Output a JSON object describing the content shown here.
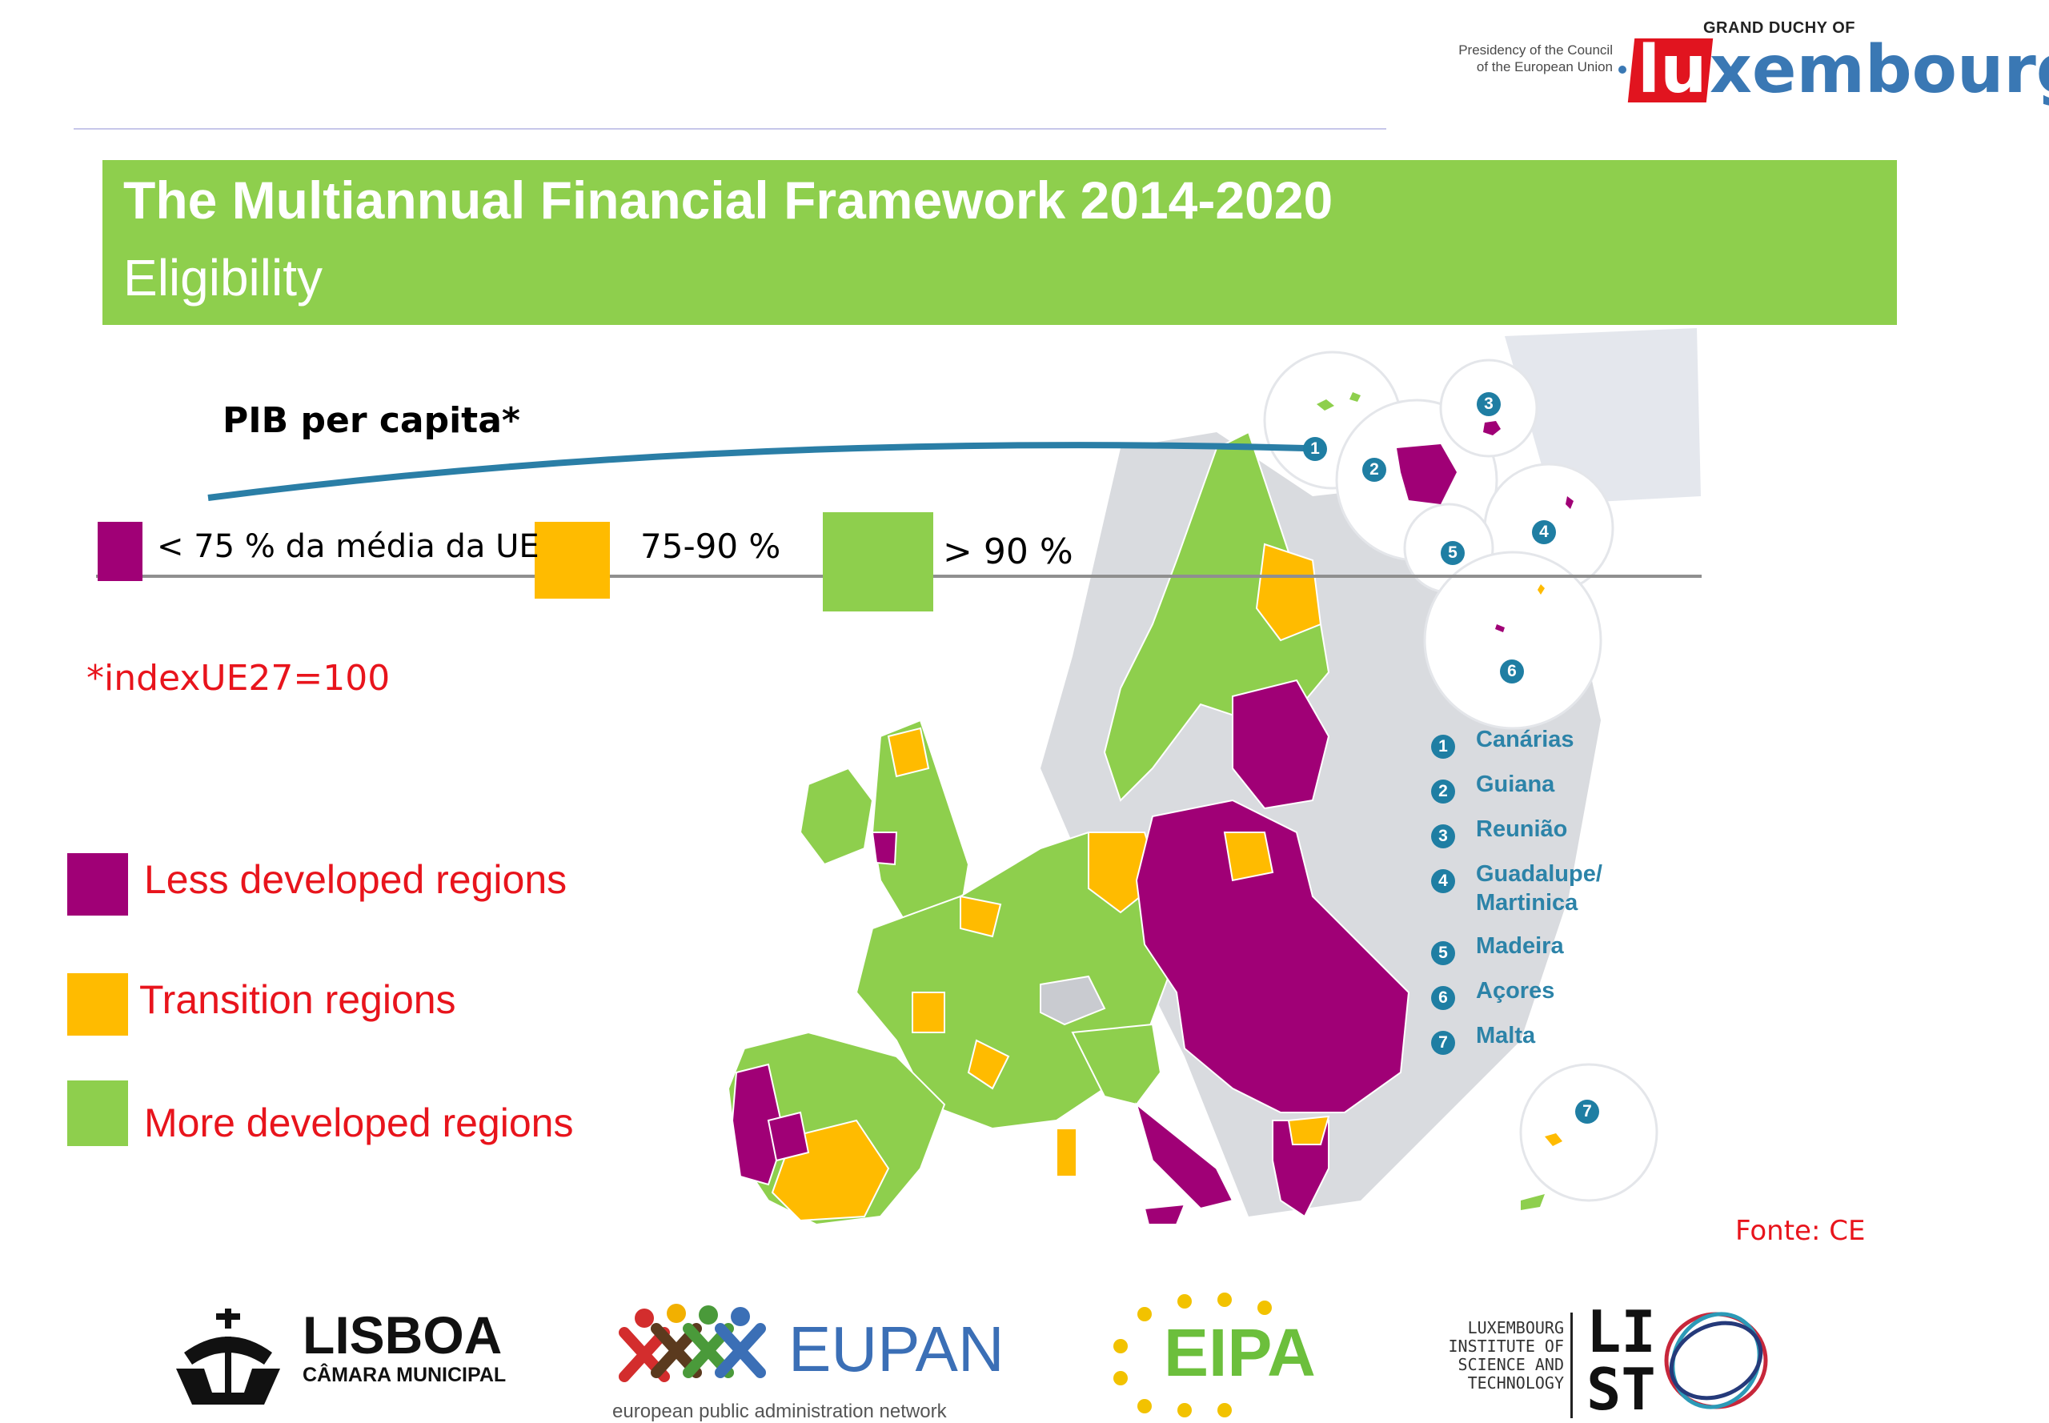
{
  "header": {
    "presidency_text": "Presidency of the Council of the European Union",
    "duchy_text": "GRAND DUCHY OF",
    "logo_lu": "lu",
    "logo_rest": "xembourg"
  },
  "banner": {
    "title": "The Multiannual Financial Framework 2014-2020",
    "subtitle": "Eligibility"
  },
  "scale_legend": {
    "label": "PIB per capita*",
    "items": [
      {
        "text": "< 75 % da média da UE",
        "color": "#a00076"
      },
      {
        "text": "75-90 %",
        "color": "#ffbb00"
      },
      {
        "text": "> 90 %",
        "color": "#8ecf4d"
      }
    ],
    "note": "*indexUE27=100"
  },
  "categories": [
    {
      "label": "Less developed regions",
      "color": "#a00076"
    },
    {
      "label": "Transition regions",
      "color": "#ffbb00"
    },
    {
      "label": "More developed regions",
      "color": "#8ecf4d"
    }
  ],
  "insets": [
    {
      "num": "1",
      "name": "Canárias"
    },
    {
      "num": "2",
      "name": "Guiana"
    },
    {
      "num": "3",
      "name": "Reunião"
    },
    {
      "num": "4",
      "name": "Guadalupe/ Martinica"
    },
    {
      "num": "5",
      "name": "Madeira"
    },
    {
      "num": "6",
      "name": "Açores"
    },
    {
      "num": "7",
      "name": "Malta"
    }
  ],
  "source": "Fonte: CE",
  "logos": {
    "lisboa_name": "LISBOA",
    "lisboa_sub": "CÂMARA MUNICIPAL",
    "eupan_name": "EUPAN",
    "eupan_sub": "european public administration network",
    "eipa_name": "EIPA",
    "list_text": "LUXEMBOURG INSTITUTE OF SCIENCE AND TECHNOLOGY",
    "list_letters": "LI ST"
  }
}
